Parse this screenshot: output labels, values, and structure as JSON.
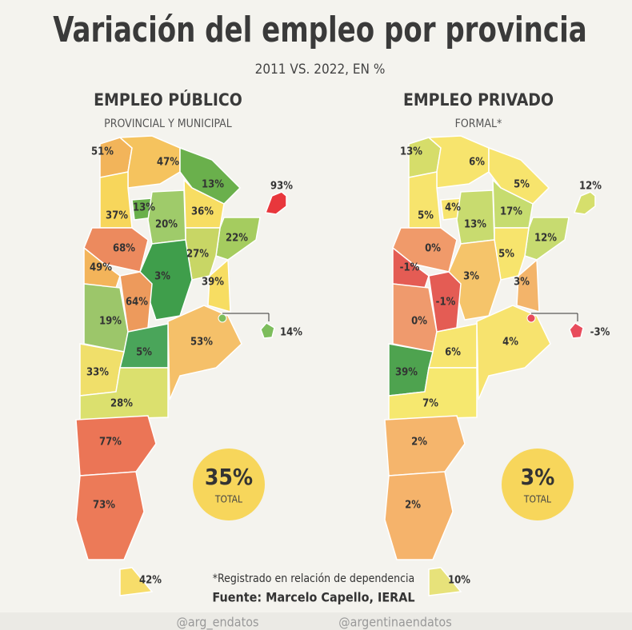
{
  "title": "Variación del empleo por provincia",
  "subtitle": "2011 VS. 2022, EN %",
  "panels": [
    {
      "heading": "EMPLEO PÚBLICO",
      "subheading": "PROVINCIAL Y MUNICIPAL",
      "total": {
        "value": 35,
        "label": "35%"
      },
      "total_caption": "TOTAL",
      "regions": [
        {
          "value": 51,
          "label": "51%",
          "color": "#f2b45a"
        },
        {
          "value": 47,
          "label": "47%",
          "color": "#f5c35e"
        },
        {
          "value": 13,
          "label": "13%",
          "color": "#6ab04c"
        },
        {
          "value": 93,
          "label": "93%",
          "color": "#e8373c"
        },
        {
          "value": 37,
          "label": "37%",
          "color": "#f7d65b"
        },
        {
          "value": 13,
          "label": "13%",
          "color": "#6ab04c"
        },
        {
          "value": 20,
          "label": "20%",
          "color": "#9fcb6a"
        },
        {
          "value": 36,
          "label": "36%",
          "color": "#f7dd62"
        },
        {
          "value": 22,
          "label": "22%",
          "color": "#a5cc5f"
        },
        {
          "value": 68,
          "label": "68%",
          "color": "#ec8a5e"
        },
        {
          "value": 27,
          "label": "27%",
          "color": "#c8d665"
        },
        {
          "value": 49,
          "label": "49%",
          "color": "#f3b45a"
        },
        {
          "value": 3,
          "label": "3%",
          "color": "#3f9e4b"
        },
        {
          "value": 39,
          "label": "39%",
          "color": "#f7dd62"
        },
        {
          "value": 64,
          "label": "64%",
          "color": "#ed9a5c"
        },
        {
          "value": 19,
          "label": "19%",
          "color": "#9cc66a"
        },
        {
          "value": 14,
          "label": "14%",
          "color": "#7dbd5c"
        },
        {
          "value": 53,
          "label": "53%",
          "color": "#f5c069"
        },
        {
          "value": 5,
          "label": "5%",
          "color": "#4aa55a"
        },
        {
          "value": 33,
          "label": "33%",
          "color": "#f0df6a"
        },
        {
          "value": 28,
          "label": "28%",
          "color": "#dbe06e"
        },
        {
          "value": 77,
          "label": "77%",
          "color": "#eb7556"
        },
        {
          "value": 73,
          "label": "73%",
          "color": "#ec7a58"
        },
        {
          "value": 42,
          "label": "42%",
          "color": "#f7dd6a"
        }
      ]
    },
    {
      "heading": "EMPLEO PRIVADO",
      "subheading": "FORMAL*",
      "total": {
        "value": 3,
        "label": "3%"
      },
      "total_caption": "TOTAL",
      "regions": [
        {
          "value": 13,
          "label": "13%",
          "color": "#d6dd6a"
        },
        {
          "value": 6,
          "label": "6%",
          "color": "#f7e46d"
        },
        {
          "value": 5,
          "label": "5%",
          "color": "#f7e46d"
        },
        {
          "value": 12,
          "label": "12%",
          "color": "#d6df6c"
        },
        {
          "value": 5,
          "label": "5%",
          "color": "#f7e46d"
        },
        {
          "value": 4,
          "label": "4%",
          "color": "#f7e46d"
        },
        {
          "value": 13,
          "label": "13%",
          "color": "#c8db6f"
        },
        {
          "value": 17,
          "label": "17%",
          "color": "#c6dc6f"
        },
        {
          "value": 12,
          "label": "12%",
          "color": "#c7db70"
        },
        {
          "value": 0,
          "label": "0%",
          "color": "#f09a6a"
        },
        {
          "value": 5,
          "label": "5%",
          "color": "#f7e46d"
        },
        {
          "value": -1,
          "label": "-1%",
          "color": "#e45c54"
        },
        {
          "value": 3,
          "label": "3%",
          "color": "#f5c46a"
        },
        {
          "value": 3,
          "label": "3%",
          "color": "#f3b46a"
        },
        {
          "value": -1,
          "label": "-1%",
          "color": "#e45c54"
        },
        {
          "value": 0,
          "label": "0%",
          "color": "#ef9a6d"
        },
        {
          "value": -3,
          "label": "-3%",
          "color": "#e84c5c"
        },
        {
          "value": 4,
          "label": "4%",
          "color": "#f7e36e"
        },
        {
          "value": 6,
          "label": "6%",
          "color": "#f7e56f"
        },
        {
          "value": 39,
          "label": "39%",
          "color": "#4ea34f"
        },
        {
          "value": 7,
          "label": "7%",
          "color": "#f6e86f"
        },
        {
          "value": 2,
          "label": "2%",
          "color": "#f5b56c"
        },
        {
          "value": 2,
          "label": "2%",
          "color": "#f5b36b"
        },
        {
          "value": 10,
          "label": "10%",
          "color": "#e7e27a"
        }
      ]
    }
  ],
  "footnote": "*Registrado en relación de dependencia",
  "source": "Fuente: Marcelo Capello, IERAL",
  "social": [
    "@arg_endatos",
    "@argentinaendatos"
  ]
}
